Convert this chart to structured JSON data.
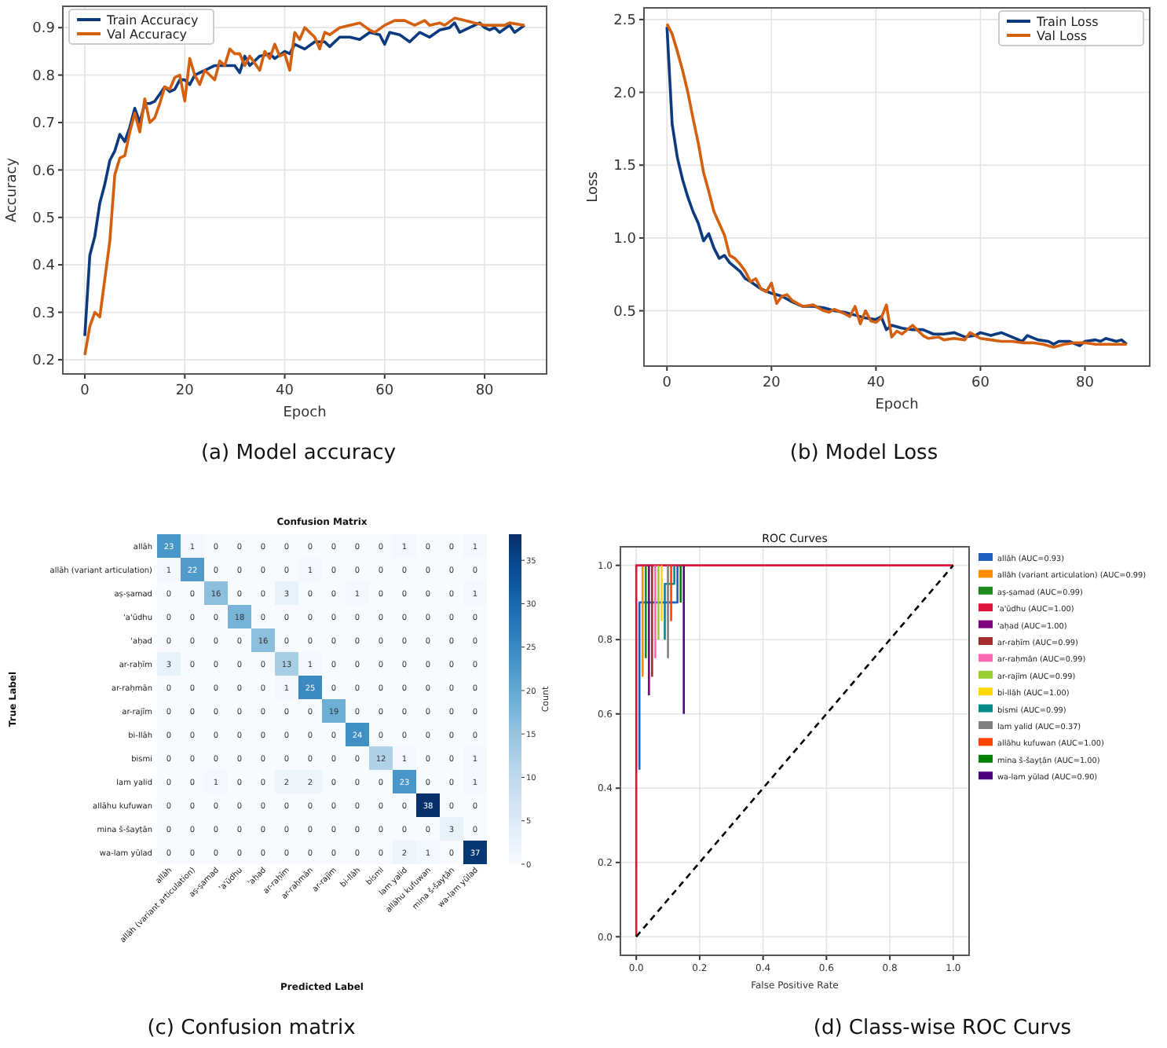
{
  "chart_data": [
    {
      "type": "line",
      "xlabel": "Epoch",
      "ylabel": "Accuracy",
      "xlim": [
        -4.4,
        92.4
      ],
      "ylim": [
        0.17,
        0.945
      ],
      "xticks": [
        0,
        20,
        40,
        60,
        80
      ],
      "yticks": [
        0.2,
        0.3,
        0.4,
        0.5,
        0.6,
        0.7,
        0.8,
        0.9
      ],
      "grid": true,
      "legend": "top left",
      "annotations": [
        "(a)   Model accuracy"
      ],
      "series": [
        {
          "name": "Train Accuracy",
          "color": "#0b3a7e",
          "x": [
            0,
            1,
            2,
            3,
            4,
            5,
            6,
            7,
            8,
            9,
            10,
            11,
            12,
            13,
            14,
            15,
            16,
            17,
            18,
            19,
            20,
            21,
            22,
            24,
            26,
            28,
            30,
            31,
            32,
            33,
            35,
            37,
            38,
            40,
            41,
            42,
            44,
            46,
            48,
            49,
            51,
            53,
            55,
            57,
            59,
            60,
            61,
            63,
            65,
            67,
            69,
            71,
            73,
            74,
            75,
            77,
            79,
            80,
            81,
            82,
            83,
            85,
            86,
            88
          ],
          "values": [
            0.25,
            0.42,
            0.46,
            0.53,
            0.57,
            0.62,
            0.64,
            0.675,
            0.66,
            0.69,
            0.73,
            0.7,
            0.74,
            0.74,
            0.745,
            0.76,
            0.775,
            0.765,
            0.77,
            0.79,
            0.79,
            0.78,
            0.8,
            0.81,
            0.82,
            0.82,
            0.82,
            0.805,
            0.84,
            0.82,
            0.84,
            0.845,
            0.835,
            0.85,
            0.845,
            0.865,
            0.855,
            0.87,
            0.87,
            0.86,
            0.88,
            0.88,
            0.875,
            0.89,
            0.885,
            0.865,
            0.89,
            0.885,
            0.87,
            0.89,
            0.88,
            0.895,
            0.9,
            0.91,
            0.89,
            0.9,
            0.91,
            0.9,
            0.895,
            0.9,
            0.89,
            0.905,
            0.89,
            0.905
          ]
        },
        {
          "name": "Val Accuracy",
          "color": "#d4600f",
          "x": [
            0,
            1,
            2,
            3,
            4,
            5,
            6,
            7,
            8,
            9,
            10,
            11,
            12,
            13,
            14,
            15,
            16,
            17,
            18,
            19,
            20,
            21,
            22,
            23,
            24,
            25,
            26,
            27,
            28,
            29,
            30,
            31,
            32,
            33,
            35,
            36,
            37,
            38,
            39,
            40,
            41,
            42,
            43,
            44,
            46,
            47,
            48,
            49,
            51,
            53,
            55,
            57,
            58,
            60,
            62,
            64,
            66,
            68,
            69,
            71,
            72,
            74,
            76,
            78,
            80,
            82,
            84,
            85,
            88
          ],
          "values": [
            0.21,
            0.27,
            0.3,
            0.29,
            0.37,
            0.45,
            0.59,
            0.625,
            0.63,
            0.68,
            0.72,
            0.68,
            0.75,
            0.7,
            0.71,
            0.74,
            0.775,
            0.77,
            0.795,
            0.8,
            0.745,
            0.835,
            0.8,
            0.78,
            0.81,
            0.8,
            0.79,
            0.83,
            0.82,
            0.855,
            0.845,
            0.845,
            0.82,
            0.84,
            0.81,
            0.85,
            0.835,
            0.865,
            0.84,
            0.845,
            0.81,
            0.89,
            0.875,
            0.9,
            0.88,
            0.855,
            0.89,
            0.885,
            0.9,
            0.905,
            0.91,
            0.895,
            0.89,
            0.905,
            0.915,
            0.915,
            0.905,
            0.915,
            0.905,
            0.91,
            0.905,
            0.92,
            0.915,
            0.91,
            0.905,
            0.905,
            0.905,
            0.91,
            0.905
          ]
        }
      ]
    },
    {
      "type": "line",
      "xlabel": "Epoch",
      "ylabel": "Loss",
      "xlim": [
        -4.4,
        92.4
      ],
      "ylim": [
        0.12,
        2.58
      ],
      "xticks": [
        0,
        20,
        40,
        60,
        80
      ],
      "yticks": [
        0.5,
        {
          "value": 1,
          "label": "1.0"
        },
        1.5,
        {
          "value": 2,
          "label": "2.0"
        },
        2.5
      ],
      "grid": true,
      "legend": "top right",
      "annotations": [
        "(b)   Model Loss"
      ],
      "series": [
        {
          "name": "Train Loss",
          "color": "#0b3a7e",
          "x": [
            0,
            1,
            2,
            3,
            4,
            5,
            6,
            7,
            8,
            9,
            10,
            11,
            12,
            13,
            14,
            15,
            16,
            18,
            20,
            22,
            24,
            26,
            28,
            30,
            32,
            34,
            36,
            38,
            40,
            41,
            42,
            43,
            45,
            47,
            49,
            51,
            53,
            55,
            57,
            59,
            60,
            62,
            64,
            66,
            68,
            69,
            71,
            73,
            74,
            75,
            77,
            79,
            80,
            82,
            83,
            84,
            86,
            87,
            88
          ],
          "values": [
            2.45,
            1.78,
            1.55,
            1.4,
            1.28,
            1.18,
            1.1,
            0.98,
            1.03,
            0.93,
            0.86,
            0.88,
            0.83,
            0.8,
            0.77,
            0.72,
            0.7,
            0.65,
            0.62,
            0.6,
            0.56,
            0.53,
            0.53,
            0.52,
            0.5,
            0.49,
            0.47,
            0.45,
            0.44,
            0.46,
            0.37,
            0.4,
            0.38,
            0.37,
            0.37,
            0.34,
            0.34,
            0.35,
            0.32,
            0.33,
            0.35,
            0.33,
            0.35,
            0.32,
            0.29,
            0.33,
            0.3,
            0.29,
            0.27,
            0.29,
            0.29,
            0.26,
            0.29,
            0.3,
            0.29,
            0.31,
            0.29,
            0.3,
            0.27
          ]
        },
        {
          "name": "Val Loss",
          "color": "#d4600f",
          "x": [
            0,
            1,
            2,
            3,
            4,
            5,
            6,
            7,
            8,
            9,
            10,
            11,
            12,
            13,
            14,
            15,
            16,
            17,
            18,
            19,
            20,
            21,
            22,
            23,
            24,
            26,
            28,
            30,
            31,
            32,
            34,
            35,
            36,
            37,
            38,
            39,
            40,
            41,
            42,
            43,
            44,
            45,
            47,
            49,
            50,
            52,
            53,
            55,
            57,
            58,
            60,
            62,
            64,
            66,
            68,
            70,
            72,
            74,
            76,
            78,
            80,
            82,
            84,
            86,
            88
          ],
          "values": [
            2.47,
            2.4,
            2.28,
            2.15,
            2.0,
            1.82,
            1.65,
            1.45,
            1.32,
            1.18,
            1.1,
            1.02,
            0.88,
            0.86,
            0.82,
            0.77,
            0.7,
            0.72,
            0.65,
            0.63,
            0.69,
            0.55,
            0.6,
            0.61,
            0.57,
            0.53,
            0.54,
            0.5,
            0.49,
            0.51,
            0.48,
            0.46,
            0.53,
            0.41,
            0.5,
            0.43,
            0.42,
            0.45,
            0.54,
            0.32,
            0.36,
            0.34,
            0.4,
            0.33,
            0.31,
            0.32,
            0.3,
            0.31,
            0.3,
            0.35,
            0.31,
            0.3,
            0.29,
            0.29,
            0.28,
            0.28,
            0.27,
            0.25,
            0.27,
            0.28,
            0.28,
            0.27,
            0.27,
            0.27,
            0.27
          ]
        }
      ]
    },
    {
      "type": "heatmap",
      "title": "Confusion Matrix",
      "xlabel": "Predicted Label",
      "ylabel": "True Label",
      "clabel": "Count",
      "clim": [
        0,
        38
      ],
      "cticks": [
        0,
        5,
        10,
        15,
        20,
        25,
        30,
        35
      ],
      "data_labels": true,
      "annotations": [
        "(c)   Confusion matrix"
      ],
      "categories": [
        "allāh",
        "allāh (variant articulation)",
        "aṣ-ṣamad",
        "'a'ūdhu",
        "'aḥad",
        "ar-raḥīm",
        "ar-raḥmān",
        "ar-rajīm",
        "bi-llāh",
        "bismi",
        "lam yalid",
        "allāhu kufuwan",
        "mina š-šayṭān",
        "wa-lam yūlad"
      ],
      "y_categories": [
        "allāh",
        "allāh (variant articulation)",
        "aṣ-ṣamad",
        "'a'ūdhu",
        "'aḥad",
        "ar-raḥīm",
        "ar-raḥmān",
        "ar-rajīm",
        "bi-llāh",
        "bismi",
        "lam yalid",
        "allāhu kufuwan",
        "mina š-šayṭān",
        "wa-lam yūlad"
      ],
      "cells": [
        [
          23,
          1,
          0,
          0,
          0,
          0,
          0,
          0,
          0,
          0,
          1,
          0,
          0,
          1
        ],
        [
          1,
          22,
          0,
          0,
          0,
          0,
          1,
          0,
          0,
          0,
          0,
          0,
          0,
          0
        ],
        [
          0,
          0,
          16,
          0,
          0,
          3,
          0,
          0,
          1,
          0,
          0,
          0,
          0,
          1
        ],
        [
          0,
          0,
          0,
          18,
          0,
          0,
          0,
          0,
          0,
          0,
          0,
          0,
          0,
          0
        ],
        [
          0,
          0,
          0,
          0,
          16,
          0,
          0,
          0,
          0,
          0,
          0,
          0,
          0,
          0
        ],
        [
          3,
          0,
          0,
          0,
          0,
          13,
          1,
          0,
          0,
          0,
          0,
          0,
          0,
          0
        ],
        [
          0,
          0,
          0,
          0,
          0,
          1,
          25,
          0,
          0,
          0,
          0,
          0,
          0,
          0
        ],
        [
          0,
          0,
          0,
          0,
          0,
          0,
          0,
          19,
          0,
          0,
          0,
          0,
          0,
          0
        ],
        [
          0,
          0,
          0,
          0,
          0,
          0,
          0,
          0,
          24,
          0,
          0,
          0,
          0,
          0
        ],
        [
          0,
          0,
          0,
          0,
          0,
          0,
          0,
          0,
          0,
          12,
          1,
          0,
          0,
          1
        ],
        [
          0,
          0,
          1,
          0,
          0,
          2,
          2,
          0,
          0,
          0,
          23,
          0,
          0,
          1
        ],
        [
          0,
          0,
          0,
          0,
          0,
          0,
          0,
          0,
          0,
          0,
          0,
          38,
          0,
          0
        ],
        [
          0,
          0,
          0,
          0,
          0,
          0,
          0,
          0,
          0,
          0,
          0,
          0,
          3,
          0
        ],
        [
          0,
          0,
          0,
          0,
          0,
          0,
          0,
          0,
          0,
          0,
          2,
          1,
          0,
          37
        ]
      ]
    },
    {
      "type": "line",
      "title": "ROC Curves",
      "xlabel": "False Positive Rate",
      "xlim": [
        -0.05,
        1.05
      ],
      "ylim": [
        -0.05,
        1.05
      ],
      "xticks": [
        {
          "value": 0,
          "label": "0.0"
        },
        0.2,
        0.4,
        0.6,
        0.8,
        {
          "value": 1,
          "label": "1.0"
        }
      ],
      "yticks": [
        {
          "value": 0,
          "label": "0.0"
        },
        0.2,
        0.4,
        0.6,
        0.8,
        {
          "value": 1,
          "label": "1.0"
        }
      ],
      "grid": true,
      "legend": "right",
      "annotations": [
        "(d)   Class-wise ROC Curvs"
      ],
      "series": [
        {
          "name": "allāh (AUC=0.93)",
          "color": "#1f5fc0",
          "x": [
            0.01,
            0.01,
            0.13,
            0.13
          ],
          "values": [
            0.45,
            0.9,
            0.9,
            1
          ]
        },
        {
          "name": "allāh (variant articulation) (AUC=0.99)",
          "color": "#ff8c00",
          "x": [
            0.02,
            0.02
          ],
          "values": [
            0.7,
            1
          ]
        },
        {
          "name": "aṣ-ṣamad (AUC=0.99)",
          "color": "#1a8a1a",
          "x": [
            0.03,
            0.03
          ],
          "values": [
            0.75,
            1
          ]
        },
        {
          "name": "'a'ūdhu (AUC=1.00)",
          "color": "#dc143c",
          "x": [
            0,
            0,
            1
          ],
          "values": [
            0,
            1,
            1
          ]
        },
        {
          "name": "'aḥad (AUC=1.00)",
          "color": "#800080",
          "x": [
            0.04,
            0.04
          ],
          "values": [
            0.65,
            1
          ]
        },
        {
          "name": "ar-raḥīm (AUC=0.99)",
          "color": "#a52a2a",
          "x": [
            0.05,
            0.05
          ],
          "values": [
            0.7,
            1
          ]
        },
        {
          "name": "ar-raḥmān (AUC=0.99)",
          "color": "#ff69b4",
          "x": [
            0.06,
            0.06
          ],
          "values": [
            0.75,
            1
          ]
        },
        {
          "name": "ar-rajīm (AUC=0.99)",
          "color": "#9acd32",
          "x": [
            0.07,
            0.07
          ],
          "values": [
            0.8,
            1
          ]
        },
        {
          "name": "bi-llāh (AUC=1.00)",
          "color": "#ffd700",
          "x": [
            0.08,
            0.08
          ],
          "values": [
            0.85,
            1
          ]
        },
        {
          "name": "bismi (AUC=0.99)",
          "color": "#008b8b",
          "x": [
            0.09,
            0.09,
            0.12,
            0.12
          ],
          "values": [
            0.8,
            0.95,
            0.95,
            1
          ]
        },
        {
          "name": "lam yalid (AUC=0.37)",
          "color": "#808080",
          "x": [
            0.1,
            0.1
          ],
          "values": [
            0.75,
            1
          ]
        },
        {
          "name": "allāhu kufuwan (AUC=1.00)",
          "color": "#ff4500",
          "x": [
            0.11,
            0.11
          ],
          "values": [
            0.85,
            1
          ]
        },
        {
          "name": "mina š-šayṭān (AUC=1.00)",
          "color": "#008000",
          "x": [
            0.14,
            0.14
          ],
          "values": [
            0.9,
            1
          ]
        },
        {
          "name": "wa-lam yūlad (AUC=0.90)",
          "color": "#4b0082",
          "x": [
            0.15,
            0.15
          ],
          "values": [
            0.6,
            1
          ]
        },
        {
          "color": "#000000",
          "line_style": "dashed",
          "x": [
            0,
            1
          ],
          "values": [
            0,
            1
          ]
        }
      ]
    }
  ]
}
